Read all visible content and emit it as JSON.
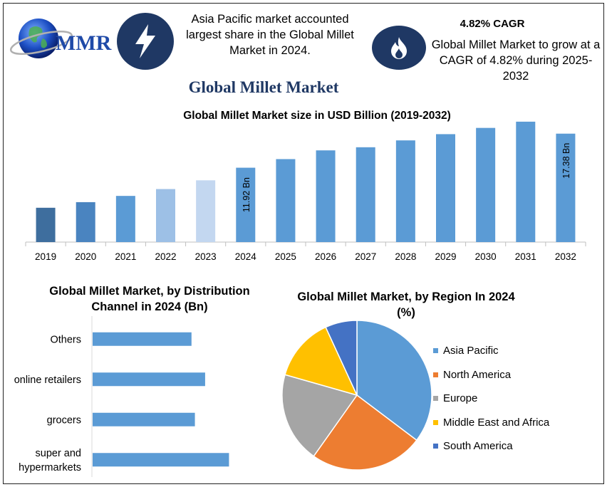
{
  "logo": {
    "text": "MMR"
  },
  "header": {
    "asia_text": "Asia Pacific market accounted largest share in the Global Millet Market in 2024.",
    "cagr_title": "4.82% CAGR",
    "cagr_text": "Global Millet Market to grow at a CAGR of 4.82% during 2025-2032",
    "icons": [
      "lightning-icon",
      "flame-icon"
    ]
  },
  "main_title": "Global Millet Market",
  "chart_data": [
    {
      "type": "bar",
      "title": "Global Millet Market size in USD Billion (2019-2032)",
      "categories": [
        "2019",
        "2020",
        "2021",
        "2022",
        "2023",
        "2024",
        "2025",
        "2026",
        "2027",
        "2028",
        "2029",
        "2030",
        "2031",
        "2032"
      ],
      "values": [
        5.5,
        6.4,
        7.4,
        8.5,
        9.9,
        11.92,
        13.3,
        14.7,
        15.2,
        16.3,
        17.3,
        18.3,
        19.3,
        17.38
      ],
      "data_labels": {
        "2024": "11.92 Bn",
        "2032": "17.38 Bn"
      },
      "colors": [
        "#3e6e9e",
        "#4a84c0",
        "#5b9bd5",
        "#9dc0e6",
        "#c3d7f0",
        "#5b9bd5",
        "#5b9bd5",
        "#5b9bd5",
        "#5b9bd5",
        "#5b9bd5",
        "#5b9bd5",
        "#5b9bd5",
        "#5b9bd5",
        "#5b9bd5"
      ],
      "ylim": [
        0,
        21
      ]
    },
    {
      "type": "bar",
      "orientation": "horizontal",
      "title": "Global Millet Market, by Distribution Channel in 2024 (Bn)",
      "categories": [
        "Others",
        "online retailers",
        "grocers",
        "super and hypermarkets"
      ],
      "values": [
        2.9,
        3.3,
        3.0,
        4.0
      ],
      "xlim": [
        0,
        4.2
      ],
      "color": "#5b9bd5"
    },
    {
      "type": "pie",
      "title": "Global Millet Market, by Region In 2024 (%)",
      "categories": [
        "Asia Pacific",
        "North America",
        "Europe",
        "Middle East and Africa",
        "South America"
      ],
      "values": [
        36,
        25,
        20,
        14,
        7
      ],
      "colors": [
        "#5b9bd5",
        "#ed7d31",
        "#a5a5a5",
        "#ffc000",
        "#4472c4"
      ],
      "legend": "right"
    }
  ]
}
